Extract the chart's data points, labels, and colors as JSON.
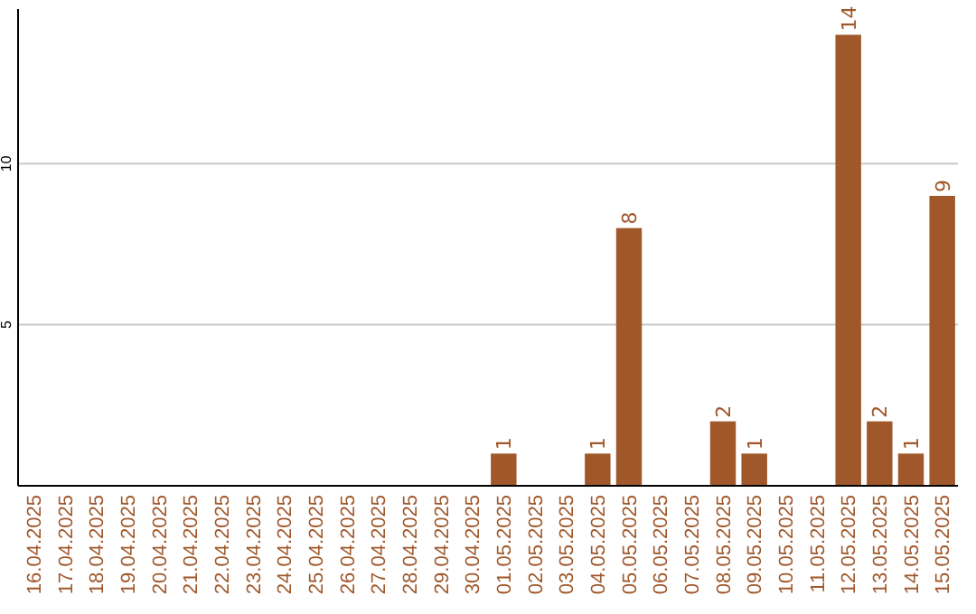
{
  "chart_data": {
    "type": "bar",
    "categories": [
      "16.04.2025",
      "17.04.2025",
      "18.04.2025",
      "19.04.2025",
      "20.04.2025",
      "21.04.2025",
      "22.04.2025",
      "23.04.2025",
      "24.04.2025",
      "25.04.2025",
      "26.04.2025",
      "27.04.2025",
      "28.04.2025",
      "29.04.2025",
      "30.04.2025",
      "01.05.2025",
      "02.05.2025",
      "03.05.2025",
      "04.05.2025",
      "05.05.2025",
      "06.05.2025",
      "07.05.2025",
      "08.05.2025",
      "09.05.2025",
      "10.05.2025",
      "11.05.2025",
      "12.05.2025",
      "13.05.2025",
      "14.05.2025",
      "15.05.2025"
    ],
    "values": [
      0,
      0,
      0,
      0,
      0,
      0,
      0,
      0,
      0,
      0,
      0,
      0,
      0,
      0,
      0,
      1,
      0,
      0,
      1,
      8,
      0,
      0,
      2,
      1,
      0,
      0,
      14,
      2,
      1,
      9
    ],
    "value_labels": [
      null,
      null,
      null,
      null,
      null,
      null,
      null,
      null,
      null,
      null,
      null,
      null,
      null,
      null,
      null,
      "1",
      null,
      null,
      "1",
      "8",
      null,
      null,
      "2",
      "1",
      null,
      null,
      "14",
      "2",
      "1",
      "9"
    ],
    "color": "#a0582b",
    "ylim": [
      0,
      14.8
    ],
    "yticks": [
      5,
      10
    ],
    "grid": "y"
  }
}
